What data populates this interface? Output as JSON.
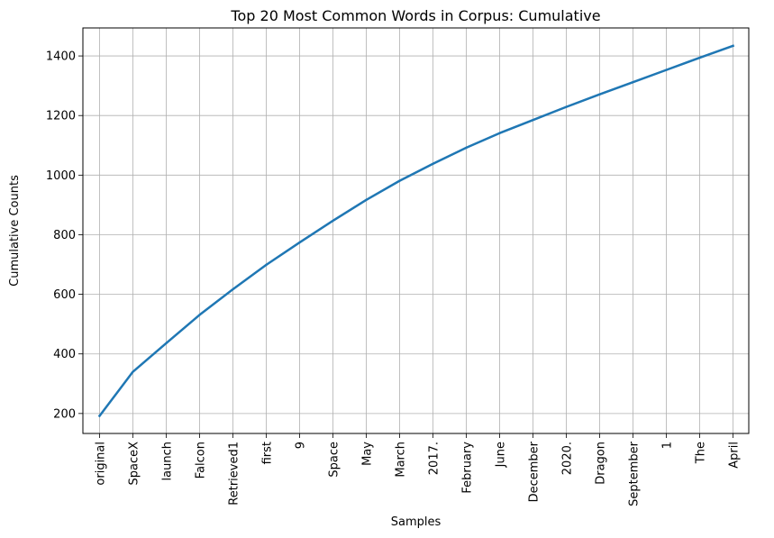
{
  "chart_data": {
    "type": "line",
    "title": "Top 20 Most Common Words in Corpus: Cumulative",
    "xlabel": "Samples",
    "ylabel": "Cumulative Counts",
    "categories": [
      "original",
      "SpaceX",
      "launch",
      "Falcon",
      "Retrieved1",
      "first",
      "9",
      "Space",
      "May",
      "March",
      "2017.",
      "February",
      "June",
      "December",
      "2020.",
      "Dragon",
      "September",
      "1",
      "The",
      "April"
    ],
    "series": [
      {
        "values": [
          192,
          340,
          436,
          531,
          617,
          699,
          774,
          847,
          917,
          981,
          1038,
          1092,
          1141,
          1185,
          1229,
          1271,
          1312,
          1353,
          1394,
          1434
        ],
        "color": "#1f77b4"
      }
    ],
    "ylim": [
      133,
      1494
    ],
    "yticks": [
      200,
      400,
      600,
      800,
      1000,
      1200,
      1400
    ],
    "grid": true,
    "legend": "none"
  }
}
